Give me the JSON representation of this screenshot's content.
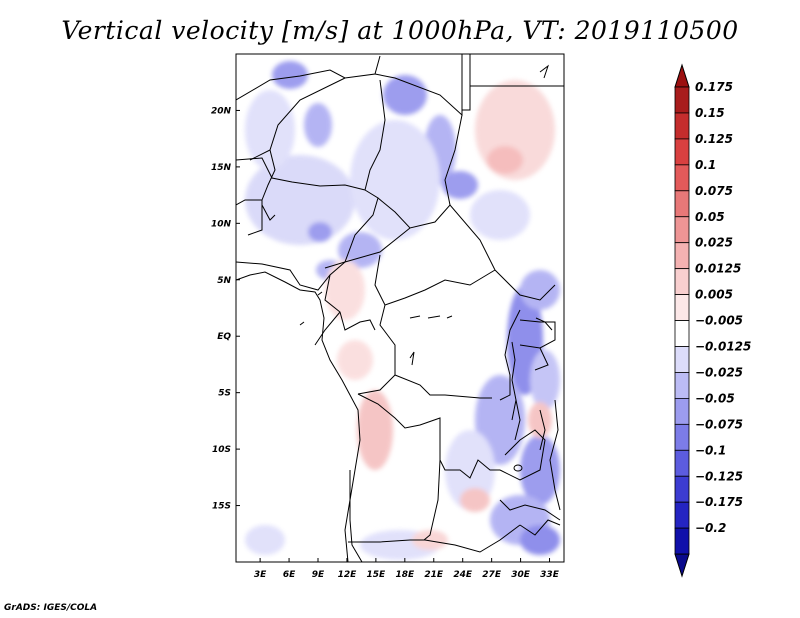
{
  "title": "Vertical velocity [m/s] at 1000hPa, VT: 2019110500",
  "footer": "GrADS: IGES/COLA",
  "map": {
    "lat_labels": [
      "20N",
      "15N",
      "10N",
      "5N",
      "EQ",
      "5S",
      "10S",
      "15S"
    ],
    "lat_values": [
      20,
      15,
      10,
      5,
      0,
      -5,
      -10,
      -15
    ],
    "lon_labels": [
      "3E",
      "6E",
      "9E",
      "12E",
      "15E",
      "18E",
      "21E",
      "24E",
      "27E",
      "30E",
      "33E"
    ],
    "lon_values": [
      3,
      6,
      9,
      12,
      15,
      18,
      21,
      24,
      27,
      30,
      33
    ],
    "lon_range": [
      0.5,
      34.5
    ],
    "lat_range": [
      -20,
      25
    ]
  },
  "colorbar": {
    "labels": [
      "0.175",
      "0.15",
      "0.125",
      "0.1",
      "0.075",
      "0.05",
      "0.025",
      "0.0125",
      "0.005",
      "−0.005",
      "−0.0125",
      "−0.025",
      "−0.05",
      "−0.075",
      "−0.1",
      "−0.125",
      "−0.175",
      "−0.2"
    ],
    "colors": [
      "#a81c1c",
      "#c42d2d",
      "#d94040",
      "#e35a5a",
      "#e87878",
      "#ee9595",
      "#f4b2b2",
      "#f8cfcf",
      "#fce8e8",
      "#ffffff",
      "#dcdcfa",
      "#bcbcf5",
      "#9c9cef",
      "#7c7ce8",
      "#5c5cdf",
      "#3c3cd2",
      "#2424c2",
      "#1010aa"
    ],
    "top_color": "#9c1010",
    "bottom_color": "#0a0a8c"
  },
  "colors": {
    "positive": "#f4b2b2",
    "negative": "#bcbcf5",
    "strong_negative": "#7c7ce8",
    "border": "#000000"
  }
}
